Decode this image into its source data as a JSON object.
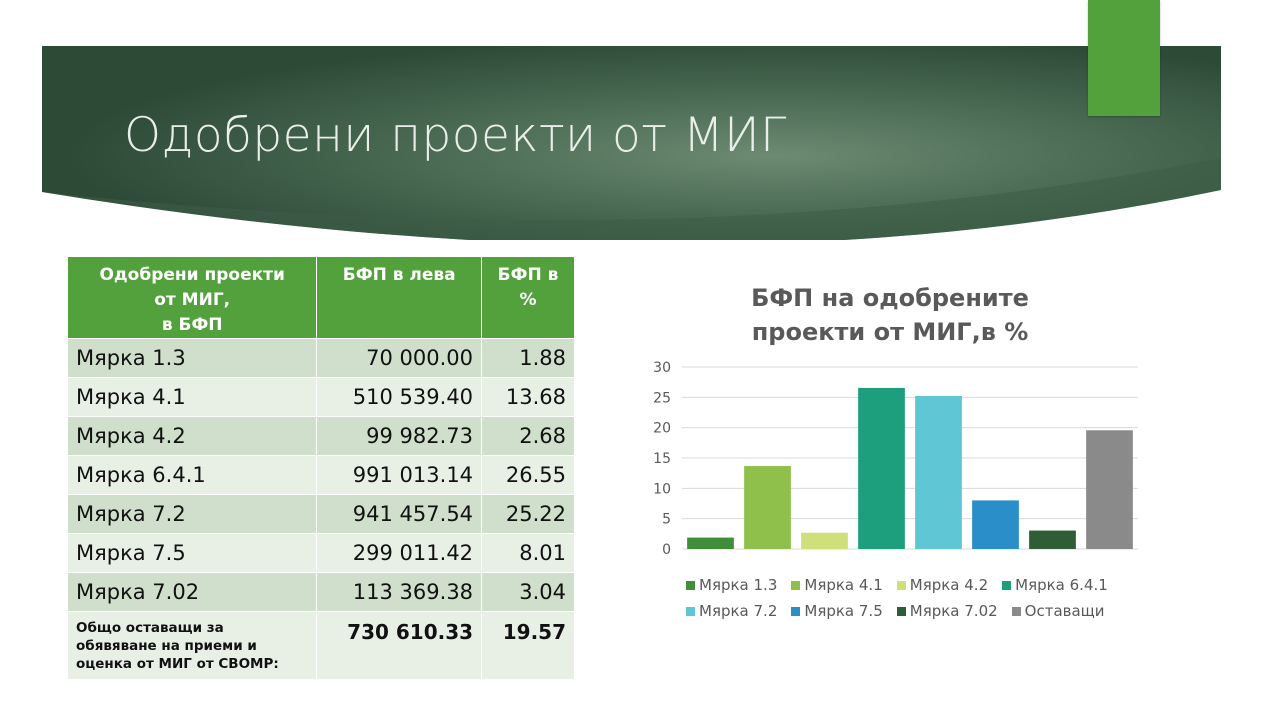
{
  "slide": {
    "title": "Одобрени проекти от МИГ",
    "colors": {
      "banner_dark": "#2f4d3a",
      "banner_light": "#5e7a63",
      "accent": "#52a13c"
    }
  },
  "table": {
    "headers": {
      "col1_line1": "Одобрени проекти",
      "col1_line2": "от МИГ,",
      "col1_line3": "в БФП",
      "col2": "БФП в лева",
      "col3_line1": "БФП в",
      "col3_line2": "%"
    },
    "rows": [
      {
        "label": "Мярка 1.3",
        "amount": "70 000.00",
        "percent": "1.88"
      },
      {
        "label": "Мярка 4.1",
        "amount": "510 539.40",
        "percent": "13.68"
      },
      {
        "label": "Мярка 4.2",
        "amount": "99 982.73",
        "percent": "2.68"
      },
      {
        "label": "Мярка 6.4.1",
        "amount": "991 013.14",
        "percent": "26.55"
      },
      {
        "label": "Мярка 7.2",
        "amount": "941 457.54",
        "percent": "25.22"
      },
      {
        "label": "Мярка 7.5",
        "amount": "299 011.42",
        "percent": "8.01"
      },
      {
        "label": "Мярка 7.02",
        "amount": "113 369.38",
        "percent": "3.04"
      }
    ],
    "total": {
      "label_line1": "Общо оставащи за",
      "label_line2": "обявяване на приеми и",
      "label_line3": "оценка от МИГ от СВОМР:",
      "amount": "730 610.33",
      "percent": "19.57"
    }
  },
  "chart_data": {
    "type": "bar",
    "title_line1": "БФП на одобрените",
    "title_line2": "проекти от МИГ,в %",
    "categories": [
      "Мярка 1.3",
      "Мярка 4.1",
      "Мярка 4.2",
      "Мярка 6.4.1",
      "Мярка 7.2",
      "Мярка 7.5",
      "Мярка 7.02",
      "Оставащи"
    ],
    "values": [
      1.88,
      13.68,
      2.68,
      26.55,
      25.22,
      8.01,
      3.04,
      19.57
    ],
    "colors": [
      "#3e8e3a",
      "#8fc04c",
      "#cfe07a",
      "#1d9f7d",
      "#5fc6d6",
      "#2a8fc9",
      "#2f5d35",
      "#8a8a8a"
    ],
    "ylim": [
      0,
      30
    ],
    "yticks": [
      "0",
      "5",
      "10",
      "15",
      "20",
      "25",
      "30"
    ],
    "grid": true,
    "legend_position": "bottom",
    "legend_rows": [
      [
        "Мярка 1.3",
        "Мярка 4.1",
        "Мярка 4.2",
        "Мярка 6.4.1"
      ],
      [
        "Мярка 7.2",
        "Мярка 7.5",
        "Мярка 7.02",
        "Оставащи"
      ]
    ]
  }
}
